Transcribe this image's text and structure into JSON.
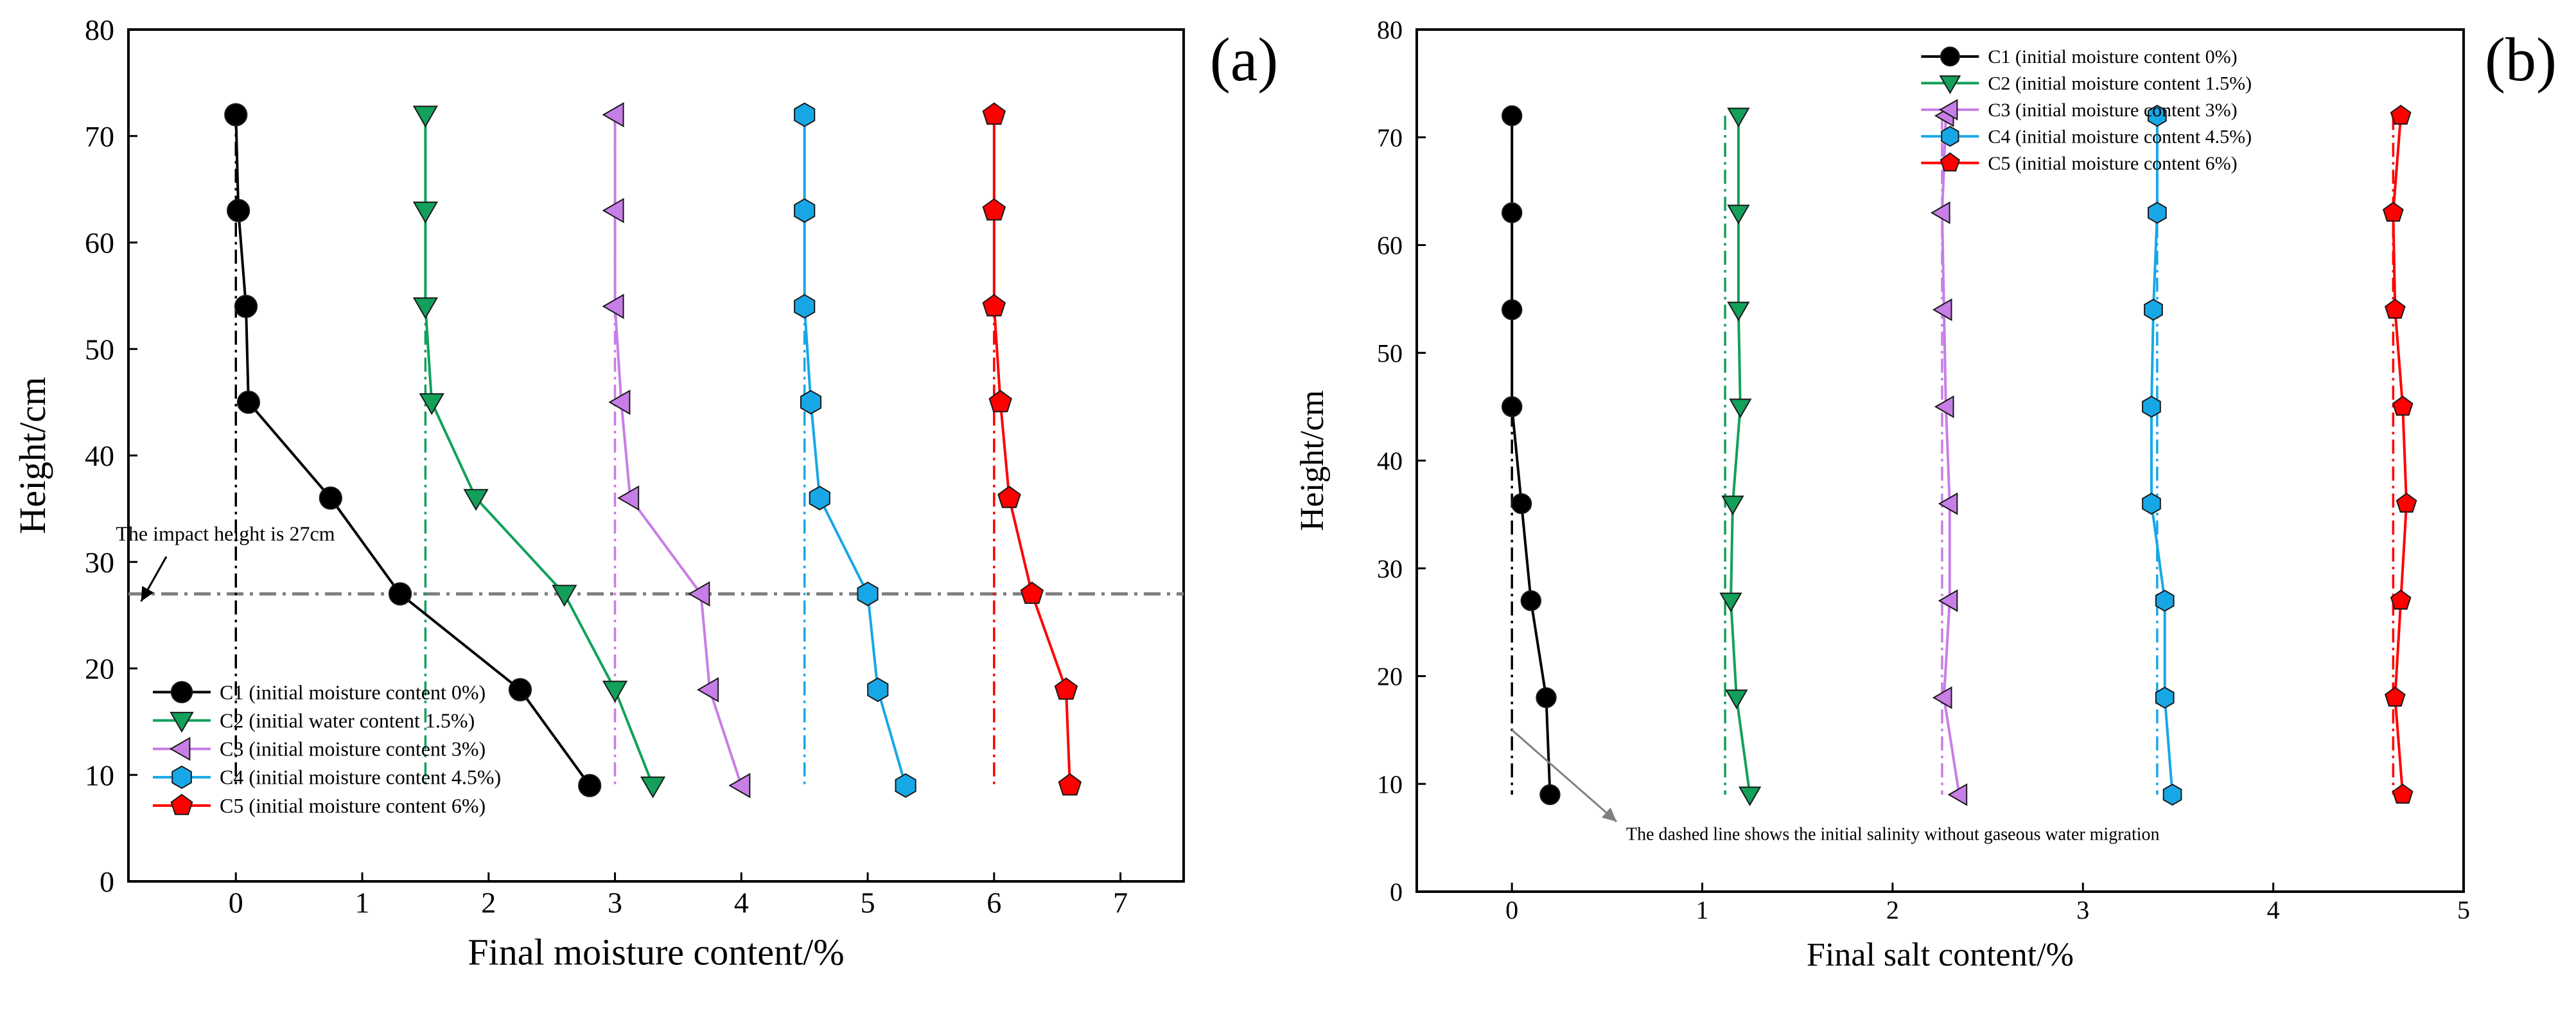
{
  "chart_data": [
    {
      "type": "line",
      "panel_label": "(a)",
      "xlabel": "Final moisture content/%",
      "ylabel": "Height/cm",
      "xlim": [
        -0.85,
        7.5
      ],
      "ylim": [
        0,
        80
      ],
      "xticks": [
        0,
        1,
        2,
        3,
        4,
        5,
        6,
        7
      ],
      "yticks": [
        0,
        10,
        20,
        30,
        40,
        50,
        60,
        70,
        80
      ],
      "legend_position": "bottom-left",
      "series": [
        {
          "name": "C1 (initial moisture content 0%)",
          "color": "#000000",
          "marker": "circle",
          "x": [
            0.0,
            0.02,
            0.08,
            0.1,
            0.75,
            1.3,
            2.25,
            2.8
          ],
          "y": [
            72,
            63,
            54,
            45,
            36,
            27,
            18,
            9
          ],
          "initial_x": 0.0
        },
        {
          "name": "C2 (initial water content 1.5%)",
          "color": "#12a05a",
          "marker": "triangle-down",
          "x": [
            1.5,
            1.5,
            1.5,
            1.55,
            1.9,
            2.6,
            3.0,
            3.3
          ],
          "y": [
            72,
            63,
            54,
            45,
            36,
            27,
            18,
            9
          ],
          "initial_x": 1.5
        },
        {
          "name": "C3 (initial moisture content 3%)",
          "color": "#c77ee6",
          "marker": "triangle-left",
          "x": [
            3.0,
            3.0,
            3.0,
            3.05,
            3.12,
            3.68,
            3.75,
            4.0
          ],
          "y": [
            72,
            63,
            54,
            45,
            36,
            27,
            18,
            9
          ],
          "initial_x": 3.0
        },
        {
          "name": "C4 (initial moisture content 4.5%)",
          "color": "#18a7e6",
          "marker": "hexagon",
          "x": [
            4.5,
            4.5,
            4.5,
            4.55,
            4.62,
            5.0,
            5.08,
            5.3
          ],
          "y": [
            72,
            63,
            54,
            45,
            36,
            27,
            18,
            9
          ],
          "initial_x": 4.5
        },
        {
          "name": "C5 (initial moisture content 6%)",
          "color": "#ff0000",
          "marker": "pentagon",
          "x": [
            6.0,
            6.0,
            6.0,
            6.05,
            6.12,
            6.3,
            6.57,
            6.6
          ],
          "y": [
            72,
            63,
            54,
            45,
            36,
            27,
            18,
            9
          ],
          "initial_x": 6.0
        }
      ],
      "reference_line": {
        "y": 27,
        "color": "#808080"
      },
      "annotation": {
        "text": "The impact height is 27cm",
        "text_at": [
          -0.95,
          32
        ],
        "arrow_from": [
          -0.55,
          30.5
        ],
        "arrow_to": [
          -0.75,
          26.3
        ]
      }
    },
    {
      "type": "line",
      "panel_label": "(b)",
      "xlabel": "Final salt content/%",
      "ylabel": "Height/cm",
      "xlim": [
        -0.5,
        5.0
      ],
      "ylim": [
        0,
        80
      ],
      "xticks": [
        0,
        1,
        2,
        3,
        4,
        5
      ],
      "yticks": [
        0,
        10,
        20,
        30,
        40,
        50,
        60,
        70,
        80
      ],
      "legend_position": "top-right",
      "series": [
        {
          "name": "C1 (initial moisture content 0%)",
          "color": "#000000",
          "marker": "circle",
          "x": [
            0.0,
            0.0,
            0.0,
            0.0,
            0.05,
            0.1,
            0.18,
            0.2
          ],
          "y": [
            72,
            63,
            54,
            45,
            36,
            27,
            18,
            9
          ],
          "initial_x": 0.0
        },
        {
          "name": "C2 (initial moisture content 1.5%)",
          "color": "#12a05a",
          "marker": "triangle-down",
          "x": [
            1.19,
            1.19,
            1.19,
            1.2,
            1.16,
            1.15,
            1.18,
            1.25
          ],
          "y": [
            72,
            63,
            54,
            45,
            36,
            27,
            18,
            9
          ],
          "initial_x": 1.12
        },
        {
          "name": "C3 (initial moisture content 3%)",
          "color": "#c77ee6",
          "marker": "triangle-left",
          "x": [
            2.28,
            2.26,
            2.27,
            2.28,
            2.3,
            2.3,
            2.27,
            2.35
          ],
          "y": [
            72,
            63,
            54,
            45,
            36,
            27,
            18,
            9
          ],
          "initial_x": 2.26
        },
        {
          "name": "C4 (initial moisture content 4.5%)",
          "color": "#18a7e6",
          "marker": "hexagon",
          "x": [
            3.39,
            3.39,
            3.37,
            3.36,
            3.36,
            3.43,
            3.43,
            3.47
          ],
          "y": [
            72,
            63,
            54,
            45,
            36,
            27,
            18,
            9
          ],
          "initial_x": 3.39
        },
        {
          "name": "C5 (initial moisture content 6%)",
          "color": "#ff0000",
          "marker": "pentagon",
          "x": [
            4.67,
            4.63,
            4.64,
            4.68,
            4.7,
            4.67,
            4.64,
            4.68
          ],
          "y": [
            72,
            63,
            54,
            45,
            36,
            27,
            18,
            9
          ],
          "initial_x": 4.63
        }
      ],
      "annotation": {
        "text": "The dashed line shows the initial salinity without gaseous water migration",
        "text_at": [
          0.6,
          4.8
        ],
        "arrow_from": [
          0.0,
          15.0
        ],
        "arrow_to": [
          0.55,
          6.5
        ]
      }
    }
  ]
}
